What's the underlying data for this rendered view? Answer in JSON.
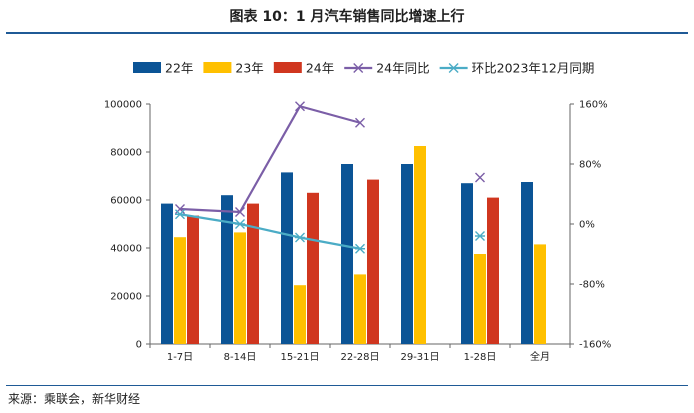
{
  "title": "图表 10：1 月汽车销售同比增速上行",
  "source": "来源：乘联会，新华财经",
  "chart_data": {
    "type": "bar",
    "categories": [
      "1-7日",
      "8-14日",
      "15-21日",
      "22-28日",
      "29-31日",
      "1-28日",
      "全月"
    ],
    "series": [
      {
        "name": "22年",
        "kind": "bar",
        "axis": "left",
        "color": "#0b5496",
        "values": [
          58500,
          62000,
          71500,
          75000,
          75000,
          67000,
          67500
        ]
      },
      {
        "name": "23年",
        "kind": "bar",
        "axis": "left",
        "color": "#ffc000",
        "values": [
          44500,
          46500,
          24500,
          29000,
          82500,
          37500,
          41500
        ]
      },
      {
        "name": "24年",
        "kind": "bar",
        "axis": "left",
        "color": "#d0361f",
        "values": [
          53500,
          58500,
          63000,
          68500,
          null,
          61000,
          null
        ]
      },
      {
        "name": "24年同比",
        "kind": "line",
        "axis": "right",
        "color": "#7b5ea7",
        "marker": "x",
        "values": [
          20,
          16,
          157,
          135,
          null,
          62,
          null
        ],
        "connect_until": 3
      },
      {
        "name": "环比2023年12月同期",
        "kind": "line",
        "axis": "right",
        "color": "#4bacc6",
        "marker": "asterisk",
        "values": [
          13,
          0,
          -18,
          -33,
          null,
          -16,
          null
        ],
        "connect_until": 3
      }
    ],
    "ylim_left": [
      0,
      100000
    ],
    "yticks_left": [
      "0",
      "20000",
      "40000",
      "60000",
      "80000",
      "100000"
    ],
    "ylim_right": [
      -160,
      160
    ],
    "yticks_right": [
      "-160%",
      "-80%",
      "0%",
      "80%",
      "160%"
    ],
    "legend_position": "top",
    "grid": false
  }
}
